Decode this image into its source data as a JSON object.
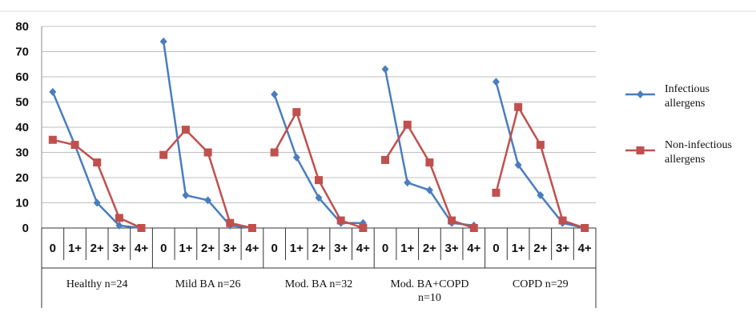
{
  "chart_data": {
    "type": "line",
    "ylim": [
      0,
      80
    ],
    "yticks": [
      0,
      10,
      20,
      30,
      40,
      50,
      60,
      70,
      80
    ],
    "grid": "horizontal",
    "legend_position": "right",
    "groups": [
      {
        "label": "Healthy n=24",
        "x": [
          "0",
          "1+",
          "2+",
          "3+",
          "4+"
        ]
      },
      {
        "label": "Mild BA n=26",
        "x": [
          "0",
          "1+",
          "2+",
          "3+",
          "4+"
        ]
      },
      {
        "label": "Mod. BA n=32",
        "x": [
          "0",
          "1+",
          "2+",
          "3+",
          "4+"
        ]
      },
      {
        "label": "Mod. BA+COPD n=10",
        "x": [
          "0",
          "1+",
          "2+",
          "3+",
          "4+"
        ]
      },
      {
        "label": "COPD n=29",
        "x": [
          "0",
          "1+",
          "2+",
          "3+",
          "4+"
        ]
      }
    ],
    "series": [
      {
        "name": "Infectious allergens",
        "color": "#4a7dbf",
        "marker": "diamond",
        "values": [
          [
            54,
            33,
            10,
            1,
            0
          ],
          [
            74,
            13,
            11,
            1,
            0
          ],
          [
            53,
            28,
            12,
            2,
            2
          ],
          [
            63,
            18,
            15,
            2,
            1
          ],
          [
            58,
            25,
            13,
            2,
            0
          ]
        ]
      },
      {
        "name": "Non-infectious allergens",
        "color": "#c0504d",
        "marker": "square",
        "values": [
          [
            35,
            33,
            26,
            4,
            0
          ],
          [
            29,
            39,
            30,
            2,
            0
          ],
          [
            30,
            46,
            19,
            3,
            0
          ],
          [
            27,
            41,
            26,
            3,
            0
          ],
          [
            14,
            48,
            33,
            3,
            0
          ]
        ]
      }
    ]
  }
}
